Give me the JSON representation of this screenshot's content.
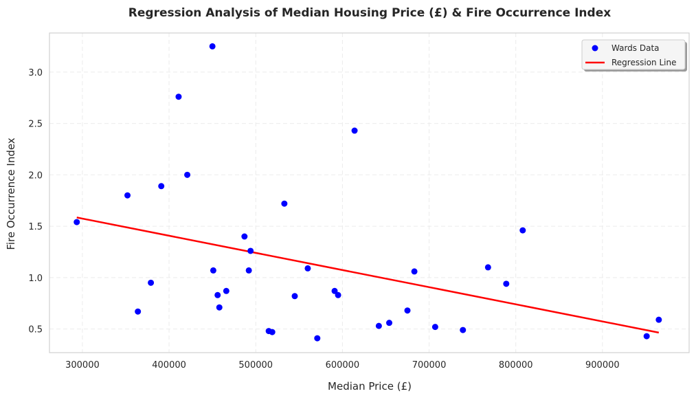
{
  "chart_data": {
    "type": "scatter",
    "title": "Regression Analysis of Median Housing Price (£) & Fire Occurrence Index",
    "xlabel": "Median Price (£)",
    "ylabel": "Fire Occurrence Index",
    "xlim": [
      262000,
      1000000
    ],
    "ylim": [
      0.27,
      3.38
    ],
    "xticks": [
      300000,
      400000,
      500000,
      600000,
      700000,
      800000,
      900000
    ],
    "yticks": [
      0.5,
      1.0,
      1.5,
      2.0,
      2.5,
      3.0
    ],
    "grid": true,
    "legend_position": "top-right",
    "series": [
      {
        "name": "Wards Data",
        "kind": "scatter",
        "color": "#0000ff",
        "points": [
          [
            293500,
            1.54
          ],
          [
            352000,
            1.8
          ],
          [
            364000,
            0.67
          ],
          [
            379000,
            0.95
          ],
          [
            391000,
            1.89
          ],
          [
            411000,
            2.76
          ],
          [
            421000,
            2.0
          ],
          [
            450000,
            3.25
          ],
          [
            451000,
            1.07
          ],
          [
            456000,
            0.83
          ],
          [
            458000,
            0.71
          ],
          [
            466000,
            0.87
          ],
          [
            487000,
            1.4
          ],
          [
            492000,
            1.07
          ],
          [
            494000,
            1.26
          ],
          [
            515000,
            0.48
          ],
          [
            519000,
            0.47
          ],
          [
            533000,
            1.72
          ],
          [
            545000,
            0.82
          ],
          [
            560000,
            1.09
          ],
          [
            571000,
            0.41
          ],
          [
            591000,
            0.87
          ],
          [
            595000,
            0.83
          ],
          [
            614000,
            2.43
          ],
          [
            642000,
            0.53
          ],
          [
            654000,
            0.56
          ],
          [
            675000,
            0.68
          ],
          [
            683000,
            1.06
          ],
          [
            707000,
            0.52
          ],
          [
            739000,
            0.49
          ],
          [
            768000,
            1.1
          ],
          [
            789000,
            0.94
          ],
          [
            808000,
            1.46
          ],
          [
            951000,
            0.43
          ],
          [
            965000,
            0.59
          ]
        ]
      },
      {
        "name": "Regression Line",
        "kind": "line",
        "color": "#ff0000",
        "points": [
          [
            293500,
            1.585
          ],
          [
            965000,
            0.465
          ]
        ]
      }
    ]
  }
}
